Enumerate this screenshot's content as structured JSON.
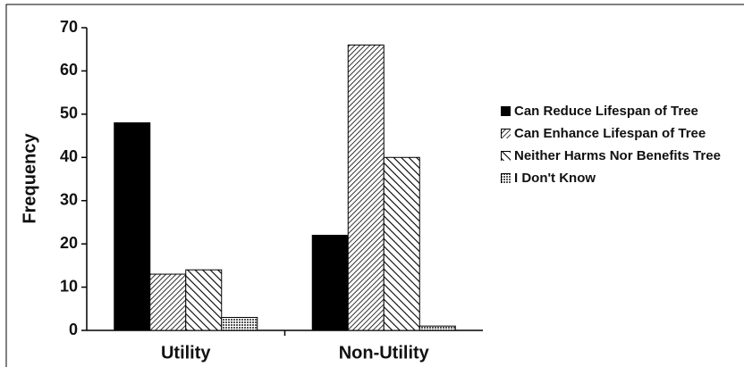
{
  "chart_data": {
    "type": "bar",
    "y_label": "Frequency",
    "categories": [
      "Utility",
      "Non-Utility"
    ],
    "series": [
      {
        "name": "Can Reduce Lifespan of Tree",
        "color": "#000000",
        "pattern": "solid",
        "values": [
          48,
          22
        ]
      },
      {
        "name": "Can Enhance Lifespan of Tree",
        "color": "#000000",
        "pattern": "hatch-forward",
        "values": [
          13,
          66
        ]
      },
      {
        "name": "Neither Harms Nor Benefits Tree",
        "color": "#000000",
        "pattern": "hatch-back",
        "values": [
          14,
          40
        ]
      },
      {
        "name": "I Don't Know",
        "color": "#000000",
        "pattern": "crosshatch",
        "values": [
          3,
          1
        ]
      }
    ],
    "ylim": [
      0,
      70
    ],
    "yticks": [
      0,
      10,
      20,
      30,
      40,
      50,
      60,
      70
    ],
    "grid": false,
    "legend": "right"
  }
}
